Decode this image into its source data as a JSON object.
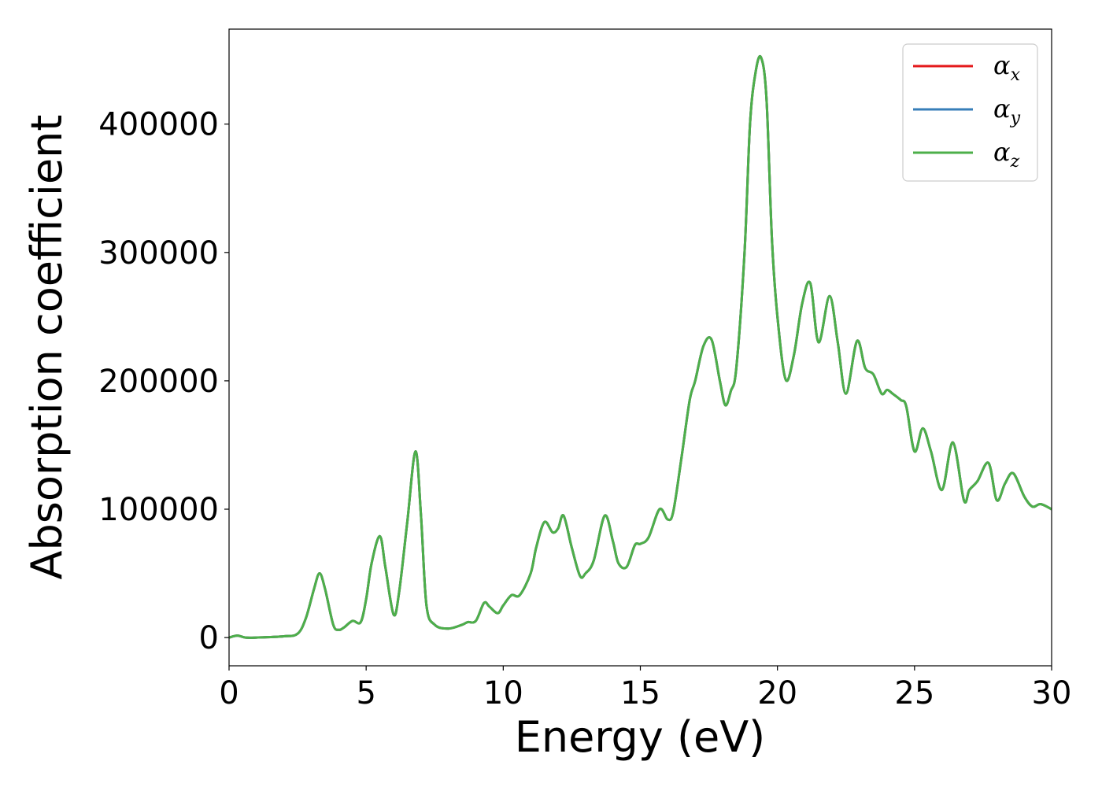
{
  "chart_data": {
    "type": "line",
    "title": "",
    "xlabel": "Energy (eV)",
    "ylabel": "Absorption coefficient",
    "xlim": [
      0,
      30
    ],
    "ylim": [
      -22000,
      474000
    ],
    "xticks": [
      0,
      5,
      10,
      15,
      20,
      25,
      30
    ],
    "yticks": [
      0,
      100000,
      200000,
      300000,
      400000
    ],
    "xtick_labels": [
      "0",
      "5",
      "10",
      "15",
      "20",
      "25",
      "30"
    ],
    "ytick_labels": [
      "0",
      "100000",
      "200000",
      "300000",
      "400000"
    ],
    "grid": false,
    "legend_position": "top-right",
    "series": [
      {
        "name": "αx",
        "symbol": "α",
        "subscript": "x",
        "color": "#e41a1c"
      },
      {
        "name": "αy",
        "symbol": "α",
        "subscript": "y",
        "color": "#377eb8"
      },
      {
        "name": "αz",
        "symbol": "α",
        "subscript": "z",
        "color": "#4daf4a"
      }
    ],
    "x": [
      0,
      0.3,
      0.6,
      1.0,
      2.0,
      2.5,
      2.8,
      3.1,
      3.3,
      3.5,
      3.8,
      4.0,
      4.2,
      4.5,
      4.8,
      5.0,
      5.2,
      5.5,
      5.7,
      6.0,
      6.2,
      6.5,
      6.8,
      7.0,
      7.2,
      7.5,
      8.0,
      8.5,
      8.7,
      9.0,
      9.3,
      9.5,
      9.8,
      10.0,
      10.3,
      10.6,
      11.0,
      11.2,
      11.5,
      11.8,
      12.0,
      12.2,
      12.5,
      12.8,
      13.0,
      13.3,
      13.7,
      14.0,
      14.2,
      14.5,
      14.8,
      15.0,
      15.3,
      15.7,
      16.0,
      16.2,
      16.5,
      16.8,
      17.0,
      17.3,
      17.6,
      17.9,
      18.1,
      18.3,
      18.5,
      18.8,
      19.0,
      19.2,
      19.4,
      19.6,
      19.8,
      20.0,
      20.3,
      20.6,
      20.9,
      21.2,
      21.5,
      21.9,
      22.2,
      22.5,
      22.9,
      23.2,
      23.5,
      23.8,
      24.0,
      24.2,
      24.5,
      24.7,
      25.0,
      25.3,
      25.6,
      26.0,
      26.4,
      26.8,
      27.0,
      27.3,
      27.7,
      28.0,
      28.3,
      28.6,
      29.0,
      29.3,
      29.6,
      30.0
    ],
    "y": [
      0,
      1500,
      0,
      0,
      1000,
      3000,
      15000,
      38000,
      50000,
      38000,
      10000,
      6000,
      8000,
      13000,
      12000,
      30000,
      58000,
      79000,
      55000,
      18000,
      35000,
      90000,
      145000,
      95000,
      25000,
      10000,
      7000,
      10000,
      12000,
      13000,
      27000,
      24000,
      19000,
      25000,
      33000,
      33000,
      50000,
      70000,
      90000,
      82000,
      85000,
      95000,
      70000,
      48000,
      50000,
      60000,
      95000,
      75000,
      58000,
      55000,
      72000,
      73000,
      78000,
      100000,
      92000,
      98000,
      140000,
      185000,
      200000,
      227000,
      232000,
      200000,
      181000,
      192000,
      210000,
      300000,
      400000,
      440000,
      452000,
      420000,
      310000,
      250000,
      201000,
      220000,
      260000,
      276000,
      230000,
      266000,
      230000,
      190000,
      231000,
      210000,
      205000,
      190000,
      193000,
      190000,
      185000,
      180000,
      145000,
      163000,
      145000,
      115000,
      152000,
      107000,
      115000,
      122000,
      136000,
      107000,
      120000,
      128000,
      110000,
      102000,
      104000,
      100000
    ]
  }
}
